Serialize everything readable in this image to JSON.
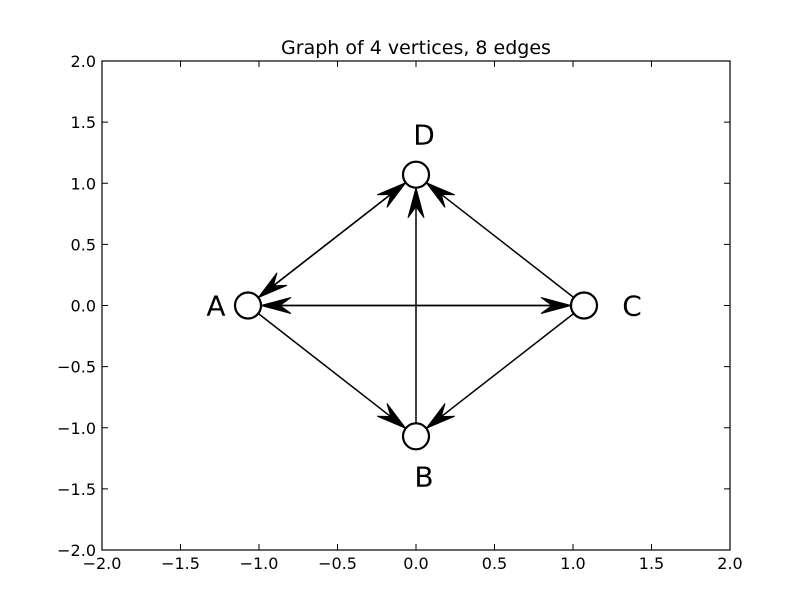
{
  "chart_data": {
    "type": "graph",
    "title": "Graph of 4 vertices, 8 edges",
    "xlim": [
      -2.0,
      2.0
    ],
    "ylim": [
      -2.0,
      2.0
    ],
    "xticks": [
      "−2.0",
      "−1.5",
      "−1.0",
      "−0.5",
      "0.0",
      "0.5",
      "1.0",
      "1.5",
      "2.0"
    ],
    "yticks": [
      "2.0",
      "1.5",
      "1.0",
      "0.5",
      "0.0",
      "−0.5",
      "−1.0",
      "−1.5",
      "−2.0"
    ],
    "vertices": [
      {
        "id": "A",
        "label": "A",
        "x": -1.07,
        "y": 0.0
      },
      {
        "id": "B",
        "label": "B",
        "x": 0.0,
        "y": -1.07
      },
      {
        "id": "C",
        "label": "C",
        "x": 1.07,
        "y": 0.0
      },
      {
        "id": "D",
        "label": "D",
        "x": 0.0,
        "y": 1.07
      }
    ],
    "edges": [
      {
        "from": "A",
        "to": "B"
      },
      {
        "from": "A",
        "to": "C"
      },
      {
        "from": "A",
        "to": "D"
      },
      {
        "from": "B",
        "to": "D"
      },
      {
        "from": "C",
        "to": "A"
      },
      {
        "from": "C",
        "to": "B"
      },
      {
        "from": "C",
        "to": "D"
      },
      {
        "from": "D",
        "to": "A"
      }
    ]
  }
}
